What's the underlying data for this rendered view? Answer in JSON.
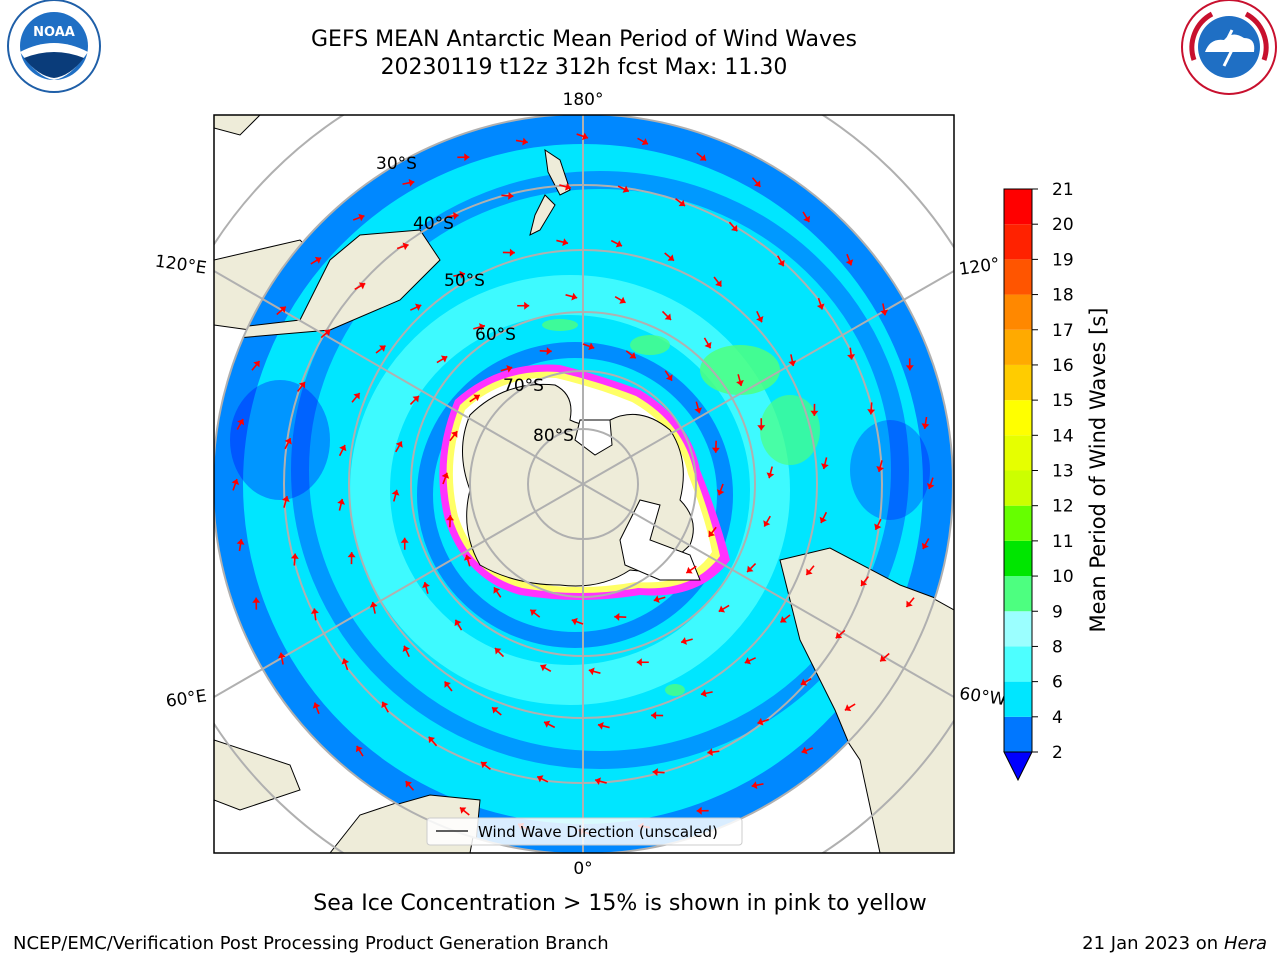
{
  "header": {
    "title_line1": "GEFS MEAN Antarctic Mean Period of Wind Waves",
    "title_line2": "20230119 t12z 312h fcst   Max: 11.30"
  },
  "map": {
    "projection": "south-polar-stereographic",
    "longitude_labels": [
      "180°",
      "120°E",
      "120°",
      "60°E",
      "60°W",
      "0°"
    ],
    "latitude_labels": [
      "30°S",
      "40°S",
      "50°S",
      "60°S",
      "70°S",
      "80°S"
    ],
    "legend_label": "Wind Wave Direction (unscaled)",
    "land_color": "#eeecd9",
    "ice_colors": [
      "#ff33ff",
      "#ffa500",
      "#ffff66",
      "#ffffff"
    ],
    "arrow_color": "#ff0000"
  },
  "colorbar": {
    "label": "Mean Period of Wind Waves [s]",
    "ticks": [
      "2",
      "4",
      "6",
      "8",
      "9",
      "10",
      "11",
      "12",
      "13",
      "14",
      "15",
      "16",
      "17",
      "18",
      "19",
      "20",
      "21"
    ],
    "colors": [
      "#0077ff",
      "#00e6ff",
      "#4dffff",
      "#9bffff",
      "#4dff80",
      "#00e600",
      "#66ff00",
      "#ccff00",
      "#e6ff00",
      "#ffff00",
      "#ffcc00",
      "#ffaa00",
      "#ff8800",
      "#ff5500",
      "#ff2200",
      "#ff0000"
    ],
    "extend_color": "#0000ff"
  },
  "footer": {
    "note": "Sea Ice Concentration > 15% is shown in pink to yellow",
    "left": "NCEP/EMC/Verification Post Processing Product Generation Branch",
    "right_prefix": "21 Jan 2023 on",
    "right_machine": "Hera"
  },
  "logos": {
    "left": "NOAA",
    "right": "NATIONAL WEATHER SERVICE"
  }
}
